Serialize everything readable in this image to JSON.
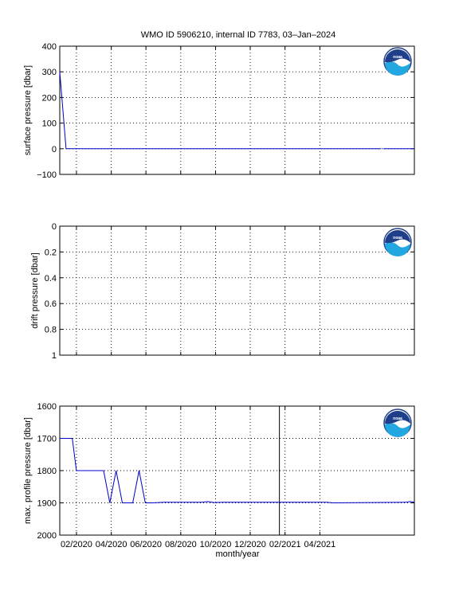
{
  "figure": {
    "title": "WMO ID 5906210, internal ID 7783, 03–Jan–2024",
    "xlabel": "month/year"
  },
  "logo": {
    "text": "noaa"
  },
  "colors": {
    "series": "#0000cc",
    "logo_blue": "#1f3f8a",
    "logo_sea": "#22a7e0"
  },
  "chart_data": [
    {
      "type": "line",
      "ylabel": "surface pressure [dbar]",
      "ylim": [
        -100,
        400
      ],
      "yticks": [
        "400",
        "300",
        "200",
        "100",
        "0",
        "−100"
      ],
      "ytick_values": [
        400,
        300,
        200,
        100,
        0,
        -100
      ],
      "x_is_months": true,
      "xlim": [
        2019.92,
        2021.62
      ],
      "xticks": [],
      "grid": true,
      "logo_position": "top-right",
      "series": [
        {
          "x": [
            2019.92,
            2019.95,
            2019.96,
            2019.97,
            2021.46
          ],
          "y": [
            300,
            0,
            0,
            0,
            0
          ]
        },
        {
          "x": [
            2021.47,
            2021.62
          ],
          "y": [
            0,
            0
          ]
        }
      ]
    },
    {
      "type": "line",
      "ylabel": "drift pressure [dbar]",
      "ylim": [
        0,
        1
      ],
      "y_inverted": true,
      "yticks": [
        "0",
        "0.2",
        "0.4",
        "0.6",
        "0.8",
        "1"
      ],
      "ytick_values": [
        0,
        0.2,
        0.4,
        0.6,
        0.8,
        1
      ],
      "xlim": [
        2019.92,
        2021.62
      ],
      "xticks": [],
      "grid": true,
      "logo_position": "top-right",
      "series": []
    },
    {
      "type": "line",
      "ylabel": "max. profile pressure [dbar]",
      "ylim": [
        1600,
        2000
      ],
      "y_inverted": true,
      "yticks": [
        "1600",
        "1700",
        "1800",
        "1900",
        "2000"
      ],
      "ytick_values": [
        1600,
        1700,
        1800,
        1900,
        2000
      ],
      "xlim": [
        2019.92,
        2021.62
      ],
      "xticks": [
        "02/2020",
        "04/2020",
        "06/2020",
        "08/2020",
        "10/2020",
        "12/2020",
        "02/2021",
        "04/2021"
      ],
      "xtick_values": [
        2020.0,
        2020.167,
        2020.333,
        2020.5,
        2020.667,
        2020.833,
        2021.0,
        2021.167
      ],
      "vertical_marker_x": 2020.973,
      "grid": true,
      "logo_position": "top-right",
      "series": [
        {
          "x": [
            2019.92,
            2019.98,
            2020.0,
            2020.13,
            2020.16,
            2020.19,
            2020.22,
            2020.27,
            2020.3,
            2020.33,
            2020.36,
            2020.42,
            2020.6,
            2020.63,
            2020.66,
            2020.7,
            2020.9,
            2021.2,
            2021.23,
            2021.58,
            2021.6,
            2021.62
          ],
          "y": [
            1700,
            1700,
            1800,
            1800,
            1900,
            1800,
            1900,
            1900,
            1800,
            1900,
            1900,
            1898,
            1898,
            1896,
            1899,
            1898,
            1898,
            1898,
            1900,
            1898,
            1896,
            1898
          ]
        }
      ]
    }
  ]
}
